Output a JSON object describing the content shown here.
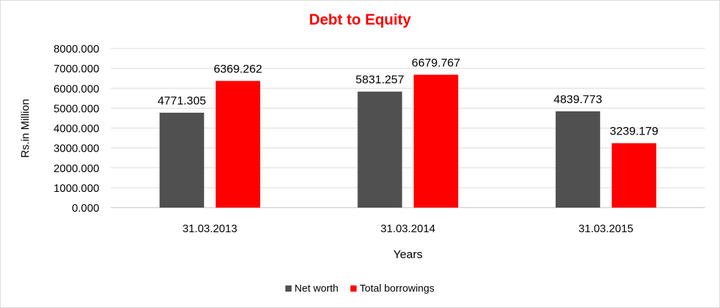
{
  "chart_data": {
    "type": "bar",
    "title": "Debt to Equity",
    "xlabel": "Years",
    "ylabel": "Rs.in Million",
    "categories": [
      "31.03.2013",
      "31.03.2014",
      "31.03.2015"
    ],
    "series": [
      {
        "name": "Net worth",
        "color": "#505050",
        "values": [
          4771.305,
          5831.257,
          4839.773
        ],
        "labels": [
          "4771.305",
          "5831.257",
          "4839.773"
        ]
      },
      {
        "name": "Total borrowings",
        "color": "#ff0000",
        "values": [
          6369.262,
          6679.767,
          3239.179
        ],
        "labels": [
          "6369.262",
          "6679.767",
          "3239.179"
        ]
      }
    ],
    "ylim": [
      0,
      8000
    ],
    "yticks": [
      "0.000",
      "1000.000",
      "2000.000",
      "3000.000",
      "4000.000",
      "5000.000",
      "6000.000",
      "7000.000",
      "8000.000"
    ],
    "grid": true,
    "legend_position": "bottom"
  }
}
